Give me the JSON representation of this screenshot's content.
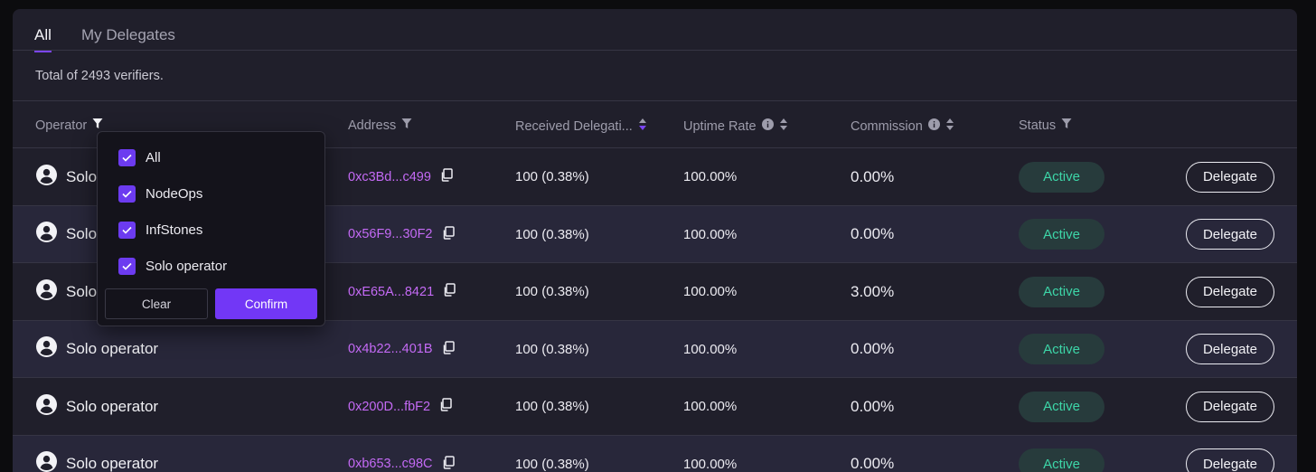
{
  "tabs": [
    {
      "label": "All",
      "active": true
    },
    {
      "label": "My Delegates",
      "active": false
    }
  ],
  "summary": "Total of 2493 verifiers.",
  "columns": {
    "operator": "Operator",
    "address": "Address",
    "received": "Received Delegati...",
    "uptime": "Uptime Rate",
    "commission": "Commission",
    "status": "Status"
  },
  "icons": {
    "filter": "filter-icon",
    "sort": "sort-icon",
    "info": "info-icon",
    "copy": "copy-icon",
    "user": "user-circle-icon",
    "check": "check-icon"
  },
  "colors": {
    "accent": "#7237f6",
    "address": "#c46af5",
    "active_text": "#3dd6a8",
    "active_bg": "#273b3c"
  },
  "rows": [
    {
      "operator": "Solo operator",
      "address": "0xc3Bd...c499",
      "received": "100 (0.38%)",
      "uptime": "100.00%",
      "commission": "0.00%",
      "status": "Active",
      "action": "Delegate"
    },
    {
      "operator": "Solo operator",
      "address": "0x56F9...30F2",
      "received": "100 (0.38%)",
      "uptime": "100.00%",
      "commission": "0.00%",
      "status": "Active",
      "action": "Delegate"
    },
    {
      "operator": "Solo operator",
      "address": "0xE65A...8421",
      "received": "100 (0.38%)",
      "uptime": "100.00%",
      "commission": "3.00%",
      "status": "Active",
      "action": "Delegate"
    },
    {
      "operator": "Solo operator",
      "address": "0x4b22...401B",
      "received": "100 (0.38%)",
      "uptime": "100.00%",
      "commission": "0.00%",
      "status": "Active",
      "action": "Delegate"
    },
    {
      "operator": "Solo operator",
      "address": "0x200D...fbF2",
      "received": "100 (0.38%)",
      "uptime": "100.00%",
      "commission": "0.00%",
      "status": "Active",
      "action": "Delegate"
    },
    {
      "operator": "Solo operator",
      "address": "0xb653...c98C",
      "received": "100 (0.38%)",
      "uptime": "100.00%",
      "commission": "0.00%",
      "status": "Active",
      "action": "Delegate"
    }
  ],
  "filter_dropdown": {
    "options": [
      {
        "label": "All",
        "checked": true
      },
      {
        "label": "NodeOps",
        "checked": true
      },
      {
        "label": "InfStones",
        "checked": true
      },
      {
        "label": "Solo operator",
        "checked": true
      }
    ],
    "clear_label": "Clear",
    "confirm_label": "Confirm"
  }
}
